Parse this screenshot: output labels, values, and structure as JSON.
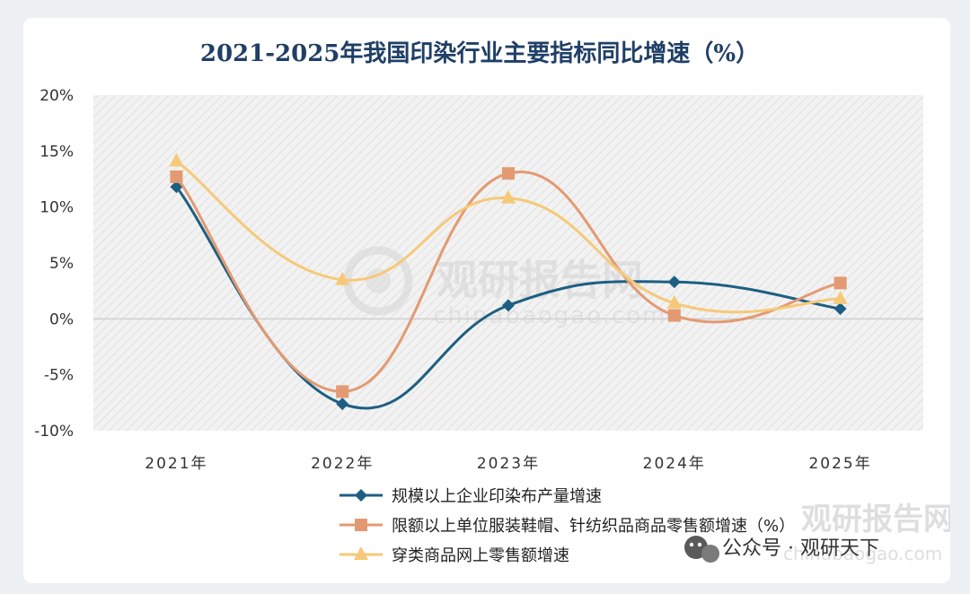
{
  "chart_data": {
    "type": "line",
    "title": "2021-2025年我国印染行业主要指标同比增速（%）",
    "categories": [
      "2021年",
      "2022年",
      "2023年",
      "2024年",
      "2025年"
    ],
    "ylim": [
      -10,
      20
    ],
    "yticks": [
      -10,
      -5,
      0,
      5,
      10,
      15,
      20
    ],
    "ytick_labels": [
      "-10%",
      "-5%",
      "0%",
      "5%",
      "10%",
      "15%",
      "20%"
    ],
    "grid": false,
    "smooth": true,
    "legend_position": "bottom",
    "series": [
      {
        "name": "规模以上企业印染布产量增速",
        "values": [
          11.8,
          -7.6,
          1.2,
          3.3,
          0.9
        ],
        "color": "#1d5f82",
        "marker": "diamond"
      },
      {
        "name": "限额以上单位服装鞋帽、针纺织品商品零售额增速（%）",
        "values": [
          12.7,
          -6.5,
          13.0,
          0.3,
          3.2
        ],
        "color": "#e39a72",
        "marker": "square"
      },
      {
        "name": "穿类商品网上零售额增速",
        "values": [
          14.1,
          3.5,
          10.8,
          1.4,
          1.8
        ],
        "color": "#f6c978",
        "marker": "triangle"
      }
    ]
  },
  "watermark": {
    "brand": "观研报告网",
    "url": "chinabaogao.com",
    "account": "公众号 · 观研天下"
  },
  "colors": {
    "title": "#1f3f66",
    "plot_background": "#efefef",
    "zero_line": "#cfcfcf"
  }
}
